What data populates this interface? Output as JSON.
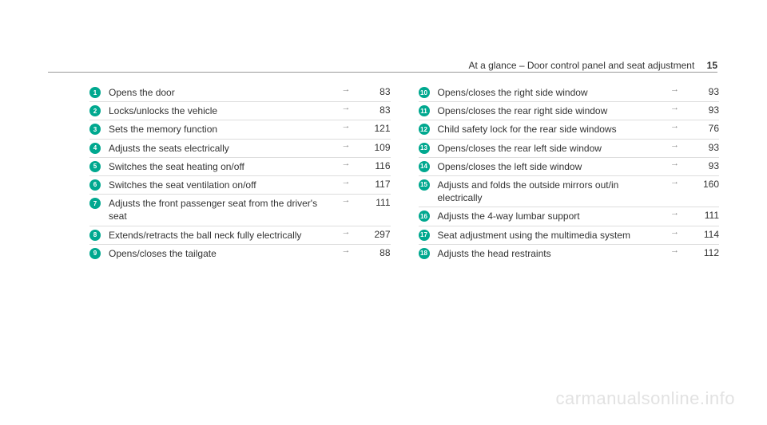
{
  "header": {
    "title": "At a glance – Door control panel and seat adjustment",
    "pageNumber": "15"
  },
  "columns": {
    "left": [
      {
        "num": "1",
        "text": "Opens the door",
        "page": "83"
      },
      {
        "num": "2",
        "text": "Locks/unlocks the vehicle",
        "page": "83"
      },
      {
        "num": "3",
        "text": "Sets the memory function",
        "page": "121"
      },
      {
        "num": "4",
        "text": "Adjusts the seats electrically",
        "page": "109"
      },
      {
        "num": "5",
        "text": "Switches the seat heating on/off",
        "page": "116"
      },
      {
        "num": "6",
        "text": "Switches the seat ventilation on/off",
        "page": "117"
      },
      {
        "num": "7",
        "text": "Adjusts the front passenger seat from the driver's seat",
        "page": "111"
      },
      {
        "num": "8",
        "text": "Extends/retracts the ball neck fully electrically",
        "page": "297"
      },
      {
        "num": "9",
        "text": "Opens/closes the tailgate",
        "page": "88"
      }
    ],
    "right": [
      {
        "num": "10",
        "text": "Opens/closes the right side window",
        "page": "93"
      },
      {
        "num": "11",
        "text": "Opens/closes the rear right side window",
        "page": "93"
      },
      {
        "num": "12",
        "text": "Child safety lock for the rear side windows",
        "page": "76"
      },
      {
        "num": "13",
        "text": "Opens/closes the rear left side window",
        "page": "93"
      },
      {
        "num": "14",
        "text": "Opens/closes the left side window",
        "page": "93"
      },
      {
        "num": "15",
        "text": "Adjusts and folds the outside mirrors out/in electrically",
        "page": "160"
      },
      {
        "num": "16",
        "text": "Adjusts the 4-way lumbar support",
        "page": "111"
      },
      {
        "num": "17",
        "text": "Seat adjustment using the multimedia system",
        "page": "114"
      },
      {
        "num": "18",
        "text": "Adjusts the head restraints",
        "page": "112"
      }
    ]
  },
  "arrow": "→",
  "watermark": "carmanualsonline.info"
}
